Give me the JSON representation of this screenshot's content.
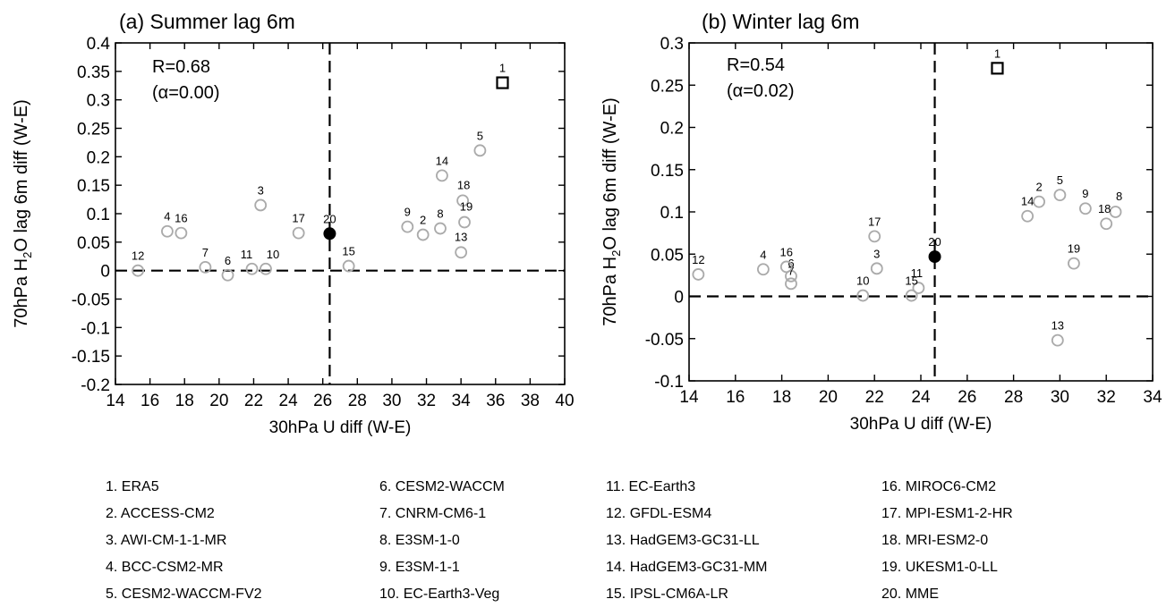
{
  "chart_data": [
    {
      "type": "scatter",
      "title": "(a) Summer lag 6m",
      "xlabel": "30hPa U diff (W-E)",
      "ylabel": "70hPa H2O lag 6m diff (W-E)",
      "xlim": [
        14,
        40
      ],
      "ylim": [
        -0.2,
        0.4
      ],
      "xticks": [
        "14",
        "16",
        "18",
        "20",
        "22",
        "24",
        "26",
        "28",
        "30",
        "32",
        "34",
        "36",
        "38",
        "40"
      ],
      "yticks": [
        "-0.2",
        "-0.15",
        "-0.1",
        "-0.05",
        "0",
        "0.05",
        "0.1",
        "0.15",
        "0.2",
        "0.25",
        "0.3",
        "0.35",
        "0.4"
      ],
      "annotation_r": "R=0.68",
      "annotation_alpha": "(α=0.00)",
      "reference_lines": {
        "x": 26.4,
        "y": 0
      },
      "points": [
        {
          "id": "1",
          "x": 36.4,
          "y": 0.33,
          "marker": "square"
        },
        {
          "id": "2",
          "x": 31.8,
          "y": 0.063,
          "marker": "circle"
        },
        {
          "id": "3",
          "x": 22.4,
          "y": 0.115,
          "marker": "circle"
        },
        {
          "id": "4",
          "x": 17.0,
          "y": 0.069,
          "marker": "circle"
        },
        {
          "id": "5",
          "x": 35.1,
          "y": 0.211,
          "marker": "circle"
        },
        {
          "id": "6",
          "x": 20.5,
          "y": -0.008,
          "marker": "circle"
        },
        {
          "id": "7",
          "x": 19.2,
          "y": 0.006,
          "marker": "circle"
        },
        {
          "id": "8",
          "x": 32.8,
          "y": 0.074,
          "marker": "circle"
        },
        {
          "id": "9",
          "x": 30.9,
          "y": 0.077,
          "marker": "circle"
        },
        {
          "id": "10",
          "x": 22.7,
          "y": 0.003,
          "marker": "circle"
        },
        {
          "id": "11",
          "x": 21.9,
          "y": 0.003,
          "marker": "circle"
        },
        {
          "id": "12",
          "x": 15.3,
          "y": 0.0,
          "marker": "circle"
        },
        {
          "id": "13",
          "x": 34.0,
          "y": 0.032,
          "marker": "circle"
        },
        {
          "id": "14",
          "x": 32.9,
          "y": 0.167,
          "marker": "circle"
        },
        {
          "id": "15",
          "x": 27.5,
          "y": 0.008,
          "marker": "circle"
        },
        {
          "id": "16",
          "x": 17.8,
          "y": 0.066,
          "marker": "circle"
        },
        {
          "id": "17",
          "x": 24.6,
          "y": 0.066,
          "marker": "circle"
        },
        {
          "id": "18",
          "x": 34.1,
          "y": 0.123,
          "marker": "circle"
        },
        {
          "id": "19",
          "x": 34.2,
          "y": 0.085,
          "marker": "circle"
        },
        {
          "id": "20",
          "x": 26.4,
          "y": 0.065,
          "marker": "filled-circle"
        }
      ]
    },
    {
      "type": "scatter",
      "title": "(b) Winter lag 6m",
      "xlabel": "30hPa U diff (W-E)",
      "ylabel": "70hPa H2O lag 6m diff (W-E)",
      "xlim": [
        14,
        34
      ],
      "ylim": [
        -0.1,
        0.3
      ],
      "xticks": [
        "14",
        "16",
        "18",
        "20",
        "22",
        "24",
        "26",
        "28",
        "30",
        "32",
        "34"
      ],
      "yticks": [
        "-0.1",
        "-0.05",
        "0",
        "0.05",
        "0.1",
        "0.15",
        "0.2",
        "0.25",
        "0.3"
      ],
      "annotation_r": "R=0.54",
      "annotation_alpha": "(α=0.02)",
      "reference_lines": {
        "x": 24.6,
        "y": 0
      },
      "points": [
        {
          "id": "1",
          "x": 27.3,
          "y": 0.27,
          "marker": "square"
        },
        {
          "id": "2",
          "x": 29.1,
          "y": 0.112,
          "marker": "circle"
        },
        {
          "id": "3",
          "x": 22.1,
          "y": 0.033,
          "marker": "circle"
        },
        {
          "id": "4",
          "x": 17.2,
          "y": 0.032,
          "marker": "circle"
        },
        {
          "id": "5",
          "x": 30.0,
          "y": 0.12,
          "marker": "circle"
        },
        {
          "id": "6",
          "x": 18.4,
          "y": 0.024,
          "marker": "circle"
        },
        {
          "id": "7",
          "x": 18.4,
          "y": 0.015,
          "marker": "circle"
        },
        {
          "id": "8",
          "x": 32.4,
          "y": 0.1,
          "marker": "circle"
        },
        {
          "id": "9",
          "x": 31.1,
          "y": 0.104,
          "marker": "circle"
        },
        {
          "id": "10",
          "x": 21.5,
          "y": 0.001,
          "marker": "circle"
        },
        {
          "id": "11",
          "x": 23.9,
          "y": 0.01,
          "marker": "circle"
        },
        {
          "id": "12",
          "x": 14.4,
          "y": 0.026,
          "marker": "circle"
        },
        {
          "id": "13",
          "x": 29.9,
          "y": -0.052,
          "marker": "circle"
        },
        {
          "id": "14",
          "x": 28.6,
          "y": 0.095,
          "marker": "circle"
        },
        {
          "id": "15",
          "x": 23.6,
          "y": 0.001,
          "marker": "circle"
        },
        {
          "id": "16",
          "x": 18.2,
          "y": 0.035,
          "marker": "circle"
        },
        {
          "id": "17",
          "x": 22.0,
          "y": 0.071,
          "marker": "circle"
        },
        {
          "id": "18",
          "x": 32.0,
          "y": 0.086,
          "marker": "circle"
        },
        {
          "id": "19",
          "x": 30.6,
          "y": 0.039,
          "marker": "circle"
        },
        {
          "id": "20",
          "x": 24.6,
          "y": 0.047,
          "marker": "filled-circle"
        }
      ]
    }
  ],
  "legend": [
    "1. ERA5",
    "2. ACCESS-CM2",
    "3. AWI-CM-1-1-MR",
    "4. BCC-CSM2-MR",
    "5. CESM2-WACCM-FV2",
    "6. CESM2-WACCM",
    "7. CNRM-CM6-1",
    "8. E3SM-1-0",
    "9. E3SM-1-1",
    "10. EC-Earth3-Veg",
    "11. EC-Earth3",
    "12. GFDL-ESM4",
    "13. HadGEM3-GC31-LL",
    "14. HadGEM3-GC31-MM",
    "15. IPSL-CM6A-LR",
    "16. MIROC6-CM2",
    "17. MPI-ESM1-2-HR",
    "18. MRI-ESM2-0",
    "19. UKESM1-0-LL",
    "20. MME"
  ],
  "colors": {
    "model_marker": "#aaaaaa",
    "obs_marker": "#000000",
    "mme_marker": "#000000"
  }
}
